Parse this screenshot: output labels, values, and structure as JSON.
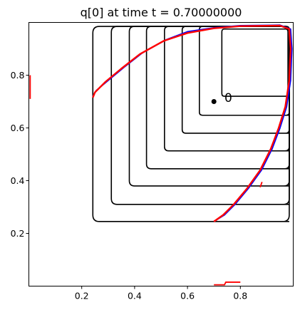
{
  "chart_data": {
    "type": "line",
    "title": "q[0] at time t =     0.70000000",
    "xlabel": "",
    "ylabel": "",
    "xlim": [
      0.0,
      1.0
    ],
    "ylim": [
      0.0,
      1.0
    ],
    "x_ticks": [
      0.2,
      0.4,
      0.6,
      0.8
    ],
    "x_tick_labels": [
      "0.2",
      "0.4",
      "0.6",
      "0.8"
    ],
    "y_ticks": [
      0.2,
      0.4,
      0.6,
      0.8
    ],
    "y_tick_labels": [
      "0.2",
      "0.4",
      "0.6",
      "0.8"
    ],
    "grid": false,
    "point": {
      "x": 0.7,
      "y": 0.7,
      "color": "#000000"
    },
    "point_label": {
      "text": "0",
      "x": 0.74,
      "y": 0.715
    },
    "series": [
      {
        "color": "#000000",
        "contours": [
          {
            "x_left": 0.242,
            "y_bottom": 0.245,
            "x_inner": 0.985,
            "y_top": 0.985,
            "corner": 0.025
          },
          {
            "x_left": 0.312,
            "y_bottom": 0.31,
            "x_inner": 0.985,
            "y_top": 0.985,
            "corner": 0.022
          },
          {
            "x_left": 0.38,
            "y_bottom": 0.38,
            "x_inner": 0.985,
            "y_top": 0.985,
            "corner": 0.02
          },
          {
            "x_left": 0.445,
            "y_bottom": 0.445,
            "x_inner": 0.985,
            "y_top": 0.985,
            "corner": 0.018
          },
          {
            "x_left": 0.513,
            "y_bottom": 0.513,
            "x_inner": 0.985,
            "y_top": 0.985,
            "corner": 0.016
          },
          {
            "x_left": 0.58,
            "y_bottom": 0.58,
            "x_inner": 0.985,
            "y_top": 0.985,
            "corner": 0.014
          },
          {
            "x_left": 0.645,
            "y_bottom": 0.648,
            "x_inner": 0.985,
            "y_top": 0.985,
            "corner": 0.012
          },
          {
            "x_left": 0.73,
            "y_bottom": 0.72,
            "x_inner": 0.98,
            "y_top": 0.975,
            "corner": 0.01
          }
        ]
      },
      {
        "color": "#0000ff",
        "outline": [
          [
            0.242,
            0.72
          ],
          [
            0.255,
            0.742
          ],
          [
            0.3,
            0.78
          ],
          [
            0.36,
            0.83
          ],
          [
            0.43,
            0.885
          ],
          [
            0.52,
            0.935
          ],
          [
            0.6,
            0.965
          ],
          [
            0.7,
            0.98
          ],
          [
            0.8,
            0.988
          ],
          [
            0.95,
            0.99
          ],
          [
            0.99,
            0.975
          ],
          [
            0.995,
            0.9
          ],
          [
            0.99,
            0.78
          ],
          [
            0.975,
            0.68
          ],
          [
            0.95,
            0.6
          ],
          [
            0.92,
            0.52
          ],
          [
            0.88,
            0.44
          ],
          [
            0.83,
            0.37
          ],
          [
            0.78,
            0.31
          ],
          [
            0.74,
            0.27
          ],
          [
            0.7,
            0.245
          ]
        ]
      },
      {
        "color": "#ff0000",
        "outline": [
          [
            0.242,
            0.715
          ],
          [
            0.25,
            0.735
          ],
          [
            0.29,
            0.775
          ],
          [
            0.35,
            0.825
          ],
          [
            0.42,
            0.88
          ],
          [
            0.51,
            0.93
          ],
          [
            0.6,
            0.96
          ],
          [
            0.7,
            0.978
          ],
          [
            0.8,
            0.986
          ],
          [
            0.95,
            0.988
          ],
          [
            0.985,
            0.975
          ],
          [
            0.99,
            0.9
          ],
          [
            0.985,
            0.78
          ],
          [
            0.97,
            0.68
          ],
          [
            0.945,
            0.6
          ],
          [
            0.915,
            0.52
          ],
          [
            0.875,
            0.44
          ],
          [
            0.825,
            0.37
          ],
          [
            0.775,
            0.31
          ],
          [
            0.735,
            0.27
          ],
          [
            0.7,
            0.245
          ]
        ]
      }
    ],
    "stray_marks": [
      {
        "color": "#ff0000",
        "points": [
          [
            0.005,
            0.8
          ],
          [
            0.005,
            0.71
          ]
        ]
      },
      {
        "color": "#ff0000",
        "points": [
          [
            0.7,
            0.005
          ],
          [
            0.74,
            0.005
          ],
          [
            0.745,
            0.015
          ],
          [
            0.8,
            0.015
          ]
        ]
      },
      {
        "color": "#ff0000",
        "points": [
          [
            0.875,
            0.375
          ],
          [
            0.882,
            0.395
          ]
        ]
      }
    ]
  }
}
